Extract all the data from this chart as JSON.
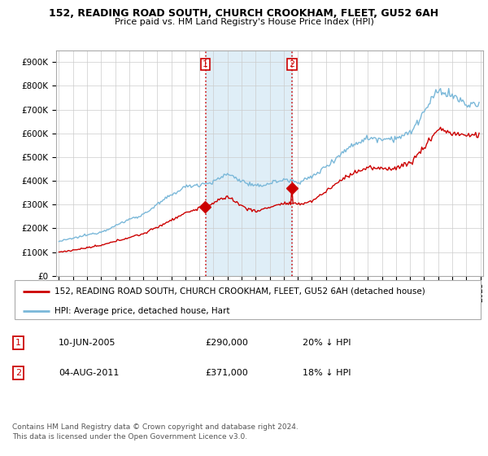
{
  "title": "152, READING ROAD SOUTH, CHURCH CROOKHAM, FLEET, GU52 6AH",
  "subtitle": "Price paid vs. HM Land Registry's House Price Index (HPI)",
  "legend_line1": "152, READING ROAD SOUTH, CHURCH CROOKHAM, FLEET, GU52 6AH (detached house)",
  "legend_line2": "HPI: Average price, detached house, Hart",
  "footer1": "Contains HM Land Registry data © Crown copyright and database right 2024.",
  "footer2": "This data is licensed under the Open Government Licence v3.0.",
  "transaction1_num": "1",
  "transaction1_date": "10-JUN-2005",
  "transaction1_price": "£290,000",
  "transaction1_hpi": "20% ↓ HPI",
  "transaction2_num": "2",
  "transaction2_date": "04-AUG-2011",
  "transaction2_price": "£371,000",
  "transaction2_hpi": "18% ↓ HPI",
  "hpi_color": "#7ab8d9",
  "price_color": "#cc0000",
  "vline_color": "#cc0000",
  "bg_shade_color": "#d8eaf6",
  "ylim": [
    0,
    950000
  ],
  "yticks": [
    0,
    100000,
    200000,
    300000,
    400000,
    500000,
    600000,
    700000,
    800000,
    900000
  ],
  "year_start": 1995,
  "year_end": 2025,
  "transaction1_year": 2005.44,
  "transaction2_year": 2011.58,
  "transaction1_price_val": 290000,
  "transaction2_price_val": 371000,
  "hpi_annual": {
    "1995": 145000,
    "1996": 158000,
    "1997": 172000,
    "1998": 185000,
    "1999": 210000,
    "2000": 238000,
    "2001": 258000,
    "2002": 300000,
    "2003": 340000,
    "2004": 375000,
    "2005": 385000,
    "2006": 395000,
    "2007": 430000,
    "2008": 400000,
    "2009": 375000,
    "2010": 390000,
    "2011": 405000,
    "2012": 395000,
    "2013": 415000,
    "2014": 460000,
    "2015": 510000,
    "2016": 555000,
    "2017": 580000,
    "2018": 578000,
    "2019": 580000,
    "2020": 600000,
    "2021": 690000,
    "2022": 780000,
    "2023": 760000,
    "2024": 720000,
    "2025": 720000
  },
  "price_annual": {
    "1995": 100000,
    "1996": 108000,
    "1997": 118000,
    "1998": 128000,
    "1999": 145000,
    "2000": 162000,
    "2001": 177000,
    "2002": 205000,
    "2003": 235000,
    "2004": 265000,
    "2005": 285000,
    "2006": 305000,
    "2007": 335000,
    "2008": 295000,
    "2009": 270000,
    "2010": 290000,
    "2011": 305000,
    "2012": 300000,
    "2013": 315000,
    "2014": 355000,
    "2015": 400000,
    "2016": 435000,
    "2017": 455000,
    "2018": 450000,
    "2019": 455000,
    "2020": 475000,
    "2021": 540000,
    "2022": 620000,
    "2023": 600000,
    "2024": 590000,
    "2025": 595000
  }
}
